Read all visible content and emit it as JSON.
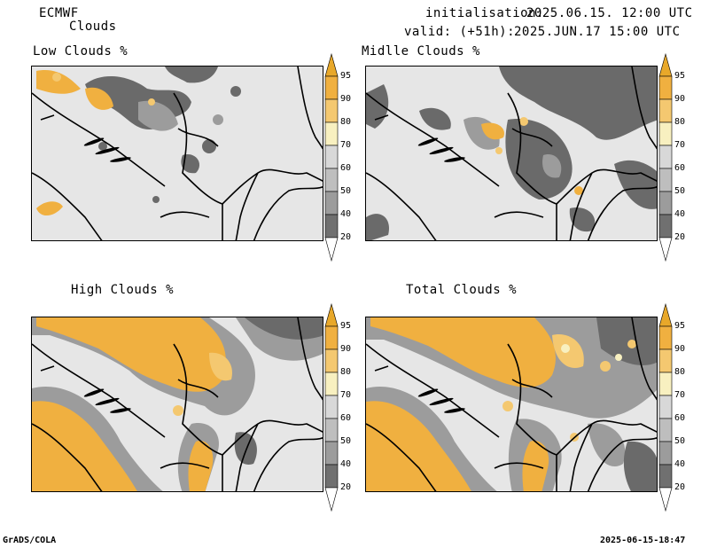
{
  "header": {
    "model": "ECMWF",
    "product": "Clouds",
    "init_label": "initialisation:",
    "init_time": "2025.06.15. 12:00 UTC",
    "valid_label": "valid: (+51h):",
    "valid_time": "2025.JUN.17 15:00 UTC"
  },
  "panels": [
    {
      "id": "low",
      "title": "Low Clouds %"
    },
    {
      "id": "mid",
      "title": "Midlle Clouds %"
    },
    {
      "id": "high",
      "title": "High Clouds %"
    },
    {
      "id": "total",
      "title": "Total Clouds %"
    }
  ],
  "colorbar": {
    "levels": [
      "95",
      "90",
      "80",
      "70",
      "60",
      "50",
      "40",
      "20"
    ],
    "colors": {
      "top": "#e8a82a",
      "95": "#f0b040",
      "90": "#f4c870",
      "80": "#f8f0c0",
      "70": "#d8d8d8",
      "60": "#bebebe",
      "50": "#9c9c9c",
      "40": "#707070",
      "20": "#4a4a4a",
      "bottom": "#ffffff"
    }
  },
  "footer": {
    "left": "GrADS/COLA",
    "right": "2025-06-15-18:47"
  }
}
